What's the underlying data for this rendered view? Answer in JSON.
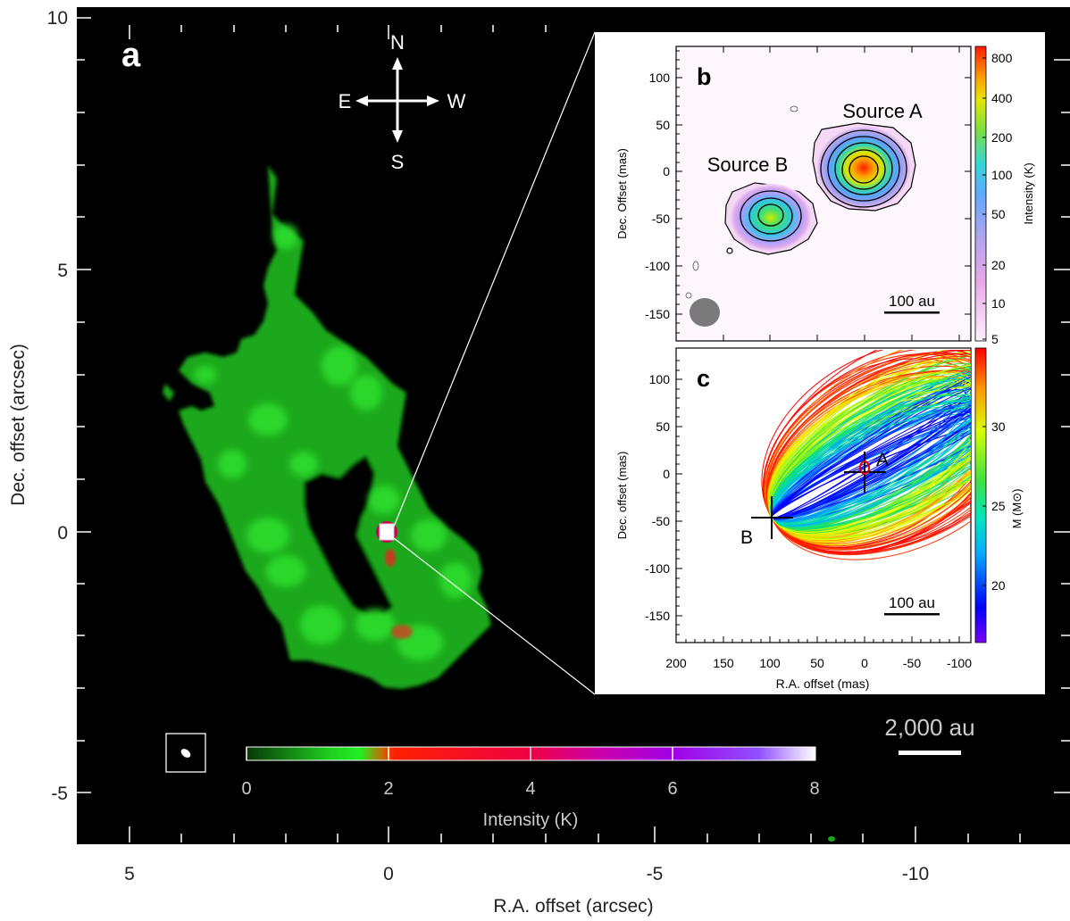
{
  "panel_a": {
    "letter": "a",
    "compass": {
      "north": "N",
      "south": "S",
      "east": "E",
      "west": "W"
    },
    "x_ticks": [
      "5",
      "0",
      "-5",
      "-10"
    ],
    "y_ticks": [
      "10",
      "5",
      "0",
      "-5"
    ],
    "xlabel": "R.A. offset (arcsec)",
    "ylabel": "Dec. offset (arcsec)",
    "scalebar": "2,000 au",
    "colorbar": {
      "ticks": [
        "0",
        "2",
        "4",
        "6",
        "8"
      ],
      "label": "Intensity (K)"
    }
  },
  "panel_b": {
    "letter": "b",
    "source_a": "Source A",
    "source_b": "Source B",
    "y_ticks": [
      "100",
      "50",
      "0",
      "-50",
      "-100",
      "-150"
    ],
    "ylabel": "Dec. Offset (mas)",
    "scalebar": "100 au",
    "colorbar": {
      "ticks": [
        "800",
        "400",
        "200",
        "100",
        "50",
        "20",
        "10",
        "5"
      ],
      "label": "Intensity (K)"
    }
  },
  "panel_c": {
    "letter": "c",
    "label_a": "A",
    "label_b": "B",
    "x_ticks": [
      "200",
      "150",
      "100",
      "50",
      "0",
      "-50",
      "-100"
    ],
    "y_ticks": [
      "100",
      "50",
      "0",
      "-50",
      "-100",
      "-150"
    ],
    "xlabel": "R.A. offset (mas)",
    "ylabel": "Dec. offset (mas)",
    "scalebar": "100 au",
    "colorbar": {
      "ticks": [
        "30",
        "25",
        "20"
      ],
      "label": "M (M⊙)"
    }
  },
  "chart_data": [
    {
      "type": "heatmap",
      "panel": "a",
      "xlabel": "R.A. offset (arcsec)",
      "ylabel": "Dec. offset (arcsec)",
      "xlim": [
        6,
        -12.5
      ],
      "ylim": [
        -6,
        10
      ],
      "colorbar_range": [
        0,
        8
      ],
      "colorbar_label": "Intensity (K)",
      "colors": [
        "#0a3d0a",
        "#22ee22",
        "#ff0000",
        "#e6006e",
        "#9900ff",
        "#ffffff"
      ]
    },
    {
      "type": "heatmap",
      "panel": "b",
      "ylabel": "Dec. Offset (mas)",
      "xlim": [
        200,
        -110
      ],
      "ylim": [
        -180,
        130
      ],
      "sources": [
        {
          "name": "Source A",
          "x": 0,
          "y": 0,
          "peak_K": 800
        },
        {
          "name": "Source B",
          "x": 100,
          "y": -47,
          "peak_K": 150
        }
      ],
      "colorbar_range": [
        5,
        1000
      ],
      "colorbar_scale": "log",
      "colorbar_label": "Intensity (K)"
    },
    {
      "type": "line",
      "panel": "c",
      "description_points": [
        {
          "name": "A",
          "x": 0,
          "y": 5
        },
        {
          "name": "B",
          "x": 97,
          "y": -47
        }
      ],
      "xlabel": "R.A. offset (mas)",
      "ylabel": "Dec. offset (mas)",
      "xlim": [
        200,
        -110
      ],
      "ylim": [
        -180,
        130
      ],
      "colorbar_range": [
        16,
        34
      ],
      "colorbar_label": "M (M⊙)"
    }
  ]
}
